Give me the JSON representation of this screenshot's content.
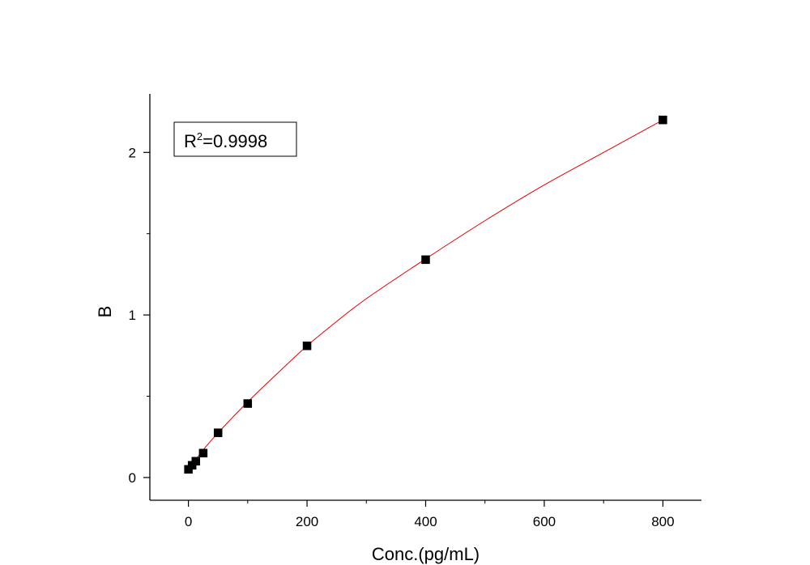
{
  "chart_data": {
    "type": "scatter",
    "title": "",
    "xlabel": "Conc.(pg/mL)",
    "ylabel": "B",
    "xlim": [
      -65,
      865
    ],
    "ylim": [
      -0.14,
      2.36
    ],
    "xticks": [
      0,
      200,
      400,
      600,
      800
    ],
    "xminor": [
      100,
      300,
      500,
      700
    ],
    "yticks": [
      0,
      1,
      2
    ],
    "yminor": [
      0.5,
      1.5
    ],
    "grid": false,
    "legend": "none",
    "annotation": {
      "base": "R",
      "sup": "2",
      "rest": "=0.9998",
      "position": "top-left"
    },
    "series": [
      {
        "marker": "square",
        "color": "#000000",
        "x": [
          0,
          6.25,
          12.5,
          25,
          50,
          100,
          200,
          400,
          800
        ],
        "y": [
          0.05,
          0.075,
          0.1,
          0.15,
          0.275,
          0.455,
          0.81,
          1.34,
          2.2
        ]
      }
    ],
    "fit": {
      "color": "#e00000",
      "x": [
        0,
        6.25,
        12.5,
        25,
        50,
        100,
        150,
        200,
        250,
        300,
        400,
        500,
        600,
        700,
        800
      ],
      "y": [
        0.045,
        0.078,
        0.11,
        0.17,
        0.275,
        0.465,
        0.64,
        0.81,
        0.96,
        1.1,
        1.345,
        1.58,
        1.8,
        2.0,
        2.2
      ]
    }
  }
}
